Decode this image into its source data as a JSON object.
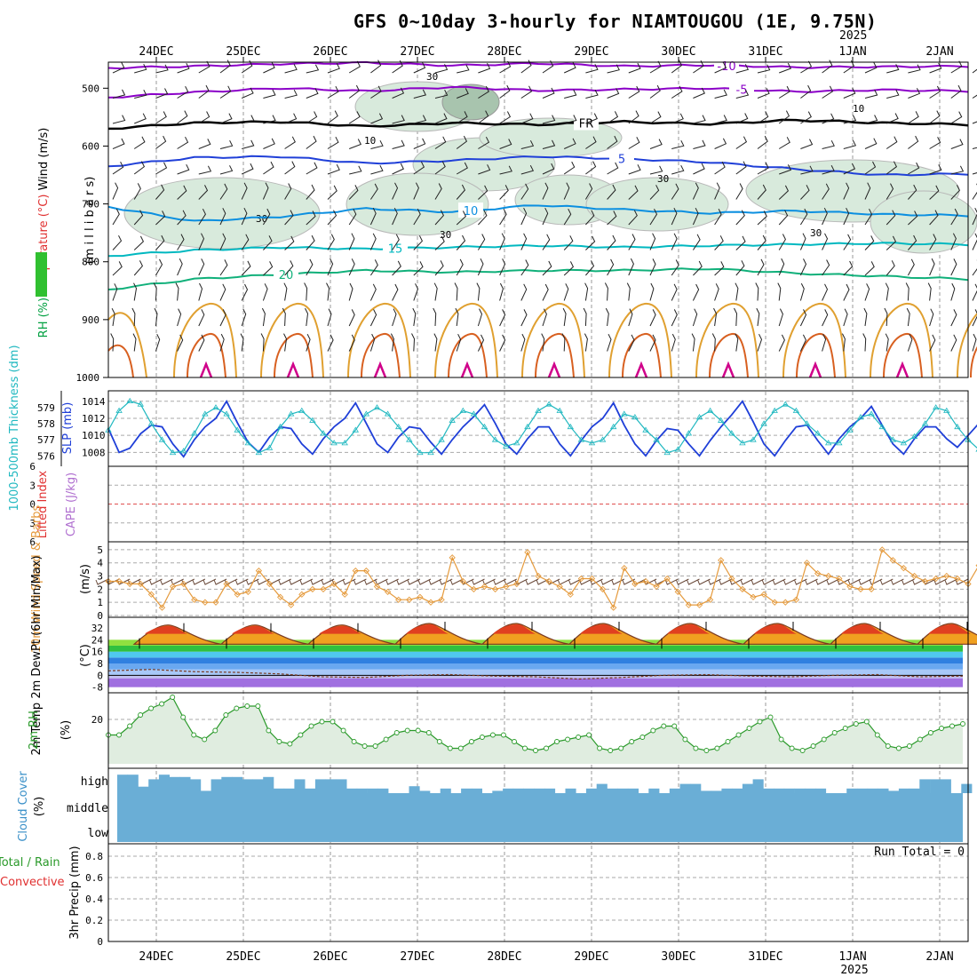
{
  "title": "GFS 0~10day 3-hourly for NIAMTOUGOU (1E, 9.75N)",
  "year_label": "2025",
  "dates": [
    "24DEC",
    "25DEC",
    "26DEC",
    "27DEC",
    "28DEC",
    "29DEC",
    "30DEC",
    "31DEC",
    "1JAN",
    "2JAN"
  ],
  "run_total": "Run Total = 0",
  "colors": {
    "purple": "#8b00c8",
    "black": "#000000",
    "blue": "#1f3fd8",
    "lightblue": "#0b8fe0",
    "cyan": "#00b8c0",
    "green": "#10b07a",
    "orange": "#e0a030",
    "darkorange": "#d86020",
    "magenta": "#d0008a",
    "rh_fill": "#d8eadc",
    "cloud": "#6aaed6",
    "slp": "#1f3fd8",
    "thickness": "#20b8c0",
    "wind10": "#e59a3c",
    "rh2m": "#2a9a2a"
  },
  "chart_data": [
    {
      "panel": "upper-air",
      "type": "contour",
      "ylabel_parts": [
        "RH (%)",
        "Temperature (°C)",
        "Wind (m/s)"
      ],
      "axis_unit": "(m i l l i b a r s)",
      "y_ticks": [
        500,
        600,
        700,
        800,
        900,
        1000
      ],
      "contours": [
        {
          "label": "-10",
          "level_mb": 462,
          "values_mb": [
            465,
            462,
            458,
            456,
            461,
            457,
            462,
            460,
            464,
            463,
            462
          ]
        },
        {
          "label": "-5",
          "level_mb": 508,
          "values_mb": [
            516,
            507,
            500,
            505,
            498,
            504,
            502,
            500,
            506,
            503,
            505
          ]
        },
        {
          "label": "FR",
          "level_mb": 562,
          "values_mb": [
            570,
            560,
            558,
            566,
            560,
            563,
            558,
            562,
            555,
            560,
            563
          ]
        },
        {
          "label": "5",
          "level_mb": 625,
          "values_mb": [
            635,
            620,
            618,
            630,
            625,
            618,
            622,
            628,
            640,
            650,
            648
          ]
        },
        {
          "label": "10",
          "level_mb": 710,
          "values_mb": [
            705,
            730,
            722,
            708,
            714,
            702,
            710,
            716,
            712,
            718,
            720
          ]
        },
        {
          "label": "15",
          "level_mb": 775,
          "values_mb": [
            790,
            780,
            775,
            778,
            775,
            772,
            775,
            772,
            770,
            768,
            770
          ]
        },
        {
          "label": "20",
          "level_mb": 825,
          "values_mb": [
            848,
            830,
            822,
            815,
            818,
            815,
            815,
            812,
            820,
            825,
            830
          ]
        }
      ],
      "rh_labels": [
        "30",
        "30",
        "30",
        "30",
        "10",
        "10",
        "30"
      ]
    },
    {
      "panel": "thickness-slp",
      "type": "line",
      "ylabel_left": "1000-500mb Thickness (dm)",
      "ylabel_right": "SLP (mb)",
      "thickness_ticks": [
        576,
        577,
        578,
        579
      ],
      "slp_ticks": [
        1008,
        1010,
        1012,
        1014
      ],
      "series": [
        {
          "name": "SLP (mb)",
          "axis": "slp",
          "values": [
            1010.8,
            1008.0,
            1008.5,
            1010.2,
            1011.2,
            1011.0,
            1009.0,
            1007.5,
            1009.5,
            1011.0,
            1012.0,
            1014.0,
            1011.5,
            1009.2,
            1008.0,
            1009.8,
            1011.0,
            1010.8,
            1009.0,
            1007.8,
            1009.6,
            1011.0,
            1012.0,
            1013.8,
            1011.4,
            1009.0,
            1008.0,
            1009.8,
            1011.0,
            1010.8,
            1009.2,
            1007.8,
            1009.5,
            1011.0,
            1012.2,
            1013.6,
            1011.4,
            1009.0,
            1007.8,
            1009.6,
            1011.0,
            1011.0,
            1009.0,
            1007.6,
            1009.4,
            1011.0,
            1012.0,
            1013.8,
            1011.2,
            1009.0,
            1007.6,
            1009.4,
            1010.8,
            1010.6,
            1009.0,
            1007.6,
            1009.4,
            1011.0,
            1012.4,
            1014.0,
            1011.6,
            1009.0,
            1007.6,
            1009.4,
            1011.0,
            1011.2,
            1009.4,
            1007.8,
            1009.6,
            1011.0,
            1012.0,
            1013.4,
            1011.2,
            1009.0,
            1007.8,
            1009.6,
            1011.0,
            1011.0,
            1009.6,
            1008.6,
            1010.0,
            1011.4
          ]
        },
        {
          "name": "1000-500mb Thickness (dm)",
          "axis": "thickness",
          "values": [
            577.6,
            578.8,
            579.4,
            579.2,
            578.0,
            577.0,
            576.2,
            576.3,
            577.4,
            578.6,
            579.0,
            578.6,
            577.6,
            576.8,
            576.2,
            576.5,
            577.8,
            578.6,
            578.8,
            578.2,
            577.4,
            576.8,
            576.8,
            577.6,
            578.6,
            579.0,
            578.6,
            577.8,
            577.0,
            576.2,
            576.2,
            577.0,
            578.2,
            578.8,
            578.6,
            577.8,
            577.0,
            576.6,
            576.8,
            577.8,
            578.8,
            579.2,
            578.8,
            577.8,
            577.0,
            576.8,
            577.0,
            577.8,
            578.6,
            578.4,
            577.6,
            577.0,
            576.2,
            576.4,
            577.4,
            578.4,
            578.8,
            578.2,
            577.4,
            576.8,
            577.0,
            578.0,
            578.8,
            579.2,
            578.8,
            578.0,
            577.4,
            576.8,
            576.8,
            577.6,
            578.4,
            578.6,
            577.8,
            577.0,
            576.8,
            577.2,
            578.0,
            579.0,
            578.8,
            577.8,
            577.0,
            576.4
          ]
        }
      ]
    },
    {
      "panel": "cape-li",
      "type": "line",
      "ylabel_left": "Lifted Index",
      "ylabel_right": "CAPE (J/kg)",
      "li_ticks": [
        -6,
        -3,
        0,
        3,
        6
      ],
      "li_tick_labels": [
        "6",
        "3",
        "0",
        "3",
        "6"
      ]
    },
    {
      "panel": "wind10m",
      "type": "line",
      "ylabel": "10m Wind Speed & Barbs",
      "unit": "(m/s)",
      "y_ticks": [
        0,
        1,
        2,
        3,
        4,
        5
      ],
      "y_tick_labels": [
        "0",
        "1",
        "2",
        "3",
        "4",
        "5"
      ],
      "series": [
        {
          "name": "10m Wind Speed",
          "values": [
            2.6,
            2.6,
            2.4,
            2.4,
            1.6,
            0.6,
            2.2,
            2.4,
            1.2,
            1.0,
            1.0,
            2.4,
            1.6,
            1.8,
            3.4,
            2.4,
            1.4,
            0.8,
            1.6,
            2.0,
            2.0,
            2.4,
            1.6,
            3.4,
            3.4,
            2.2,
            1.8,
            1.2,
            1.2,
            1.4,
            1.0,
            1.2,
            4.4,
            2.6,
            2.0,
            2.2,
            2.0,
            2.2,
            2.4,
            4.8,
            3.0,
            2.6,
            2.2,
            1.6,
            2.8,
            2.8,
            2.0,
            0.6,
            3.6,
            2.4,
            2.6,
            2.2,
            2.8,
            1.8,
            0.8,
            0.8,
            1.2,
            4.2,
            2.8,
            2.0,
            1.4,
            1.6,
            1.0,
            1.0,
            1.2,
            4.0,
            3.2,
            3.0,
            2.8,
            2.2,
            2.0,
            2.0,
            5.0,
            4.2,
            3.6,
            3.0,
            2.6,
            2.8,
            3.0,
            2.8,
            2.4,
            3.8
          ]
        }
      ]
    },
    {
      "panel": "temp2m",
      "type": "area",
      "ylabel": "2m Temp 2m DewPt (6hr Min/Max)",
      "unit": "(°C)",
      "y_ticks": [
        -8,
        0,
        8,
        16,
        24,
        32
      ],
      "max_temps": [
        34,
        34,
        34,
        35,
        35,
        35,
        35,
        35,
        35,
        35
      ],
      "min_temps": [
        21,
        21,
        21,
        21,
        21,
        21,
        21,
        21,
        21,
        21
      ],
      "dewpoint": [
        3.0,
        4.0,
        2.5,
        2.0,
        1.0,
        -1.0,
        -1.5,
        0.0,
        0.5,
        -0.5,
        -1.0,
        -2.5,
        -1.5,
        0.0,
        0.5,
        -0.5,
        -1.0,
        0.0,
        0.5,
        -1.0,
        -0.5
      ]
    },
    {
      "panel": "rh2m",
      "type": "area",
      "ylabel": "2m RH",
      "unit": "(%)",
      "y_ticks": [
        20
      ],
      "series": [
        {
          "name": "2m RH",
          "values": [
            13,
            13,
            17,
            22,
            25,
            27,
            30,
            21,
            13,
            11,
            15,
            22,
            25,
            26,
            26,
            15,
            10,
            9,
            13,
            17,
            19,
            19,
            15,
            10,
            8,
            8,
            11,
            14,
            15,
            15,
            14,
            10,
            7,
            7,
            10,
            12,
            13,
            13,
            10,
            7,
            6,
            7,
            10,
            11,
            12,
            13,
            7,
            6,
            7,
            10,
            12,
            15,
            17,
            17,
            11,
            7,
            6,
            7,
            10,
            13,
            16,
            19,
            21,
            11,
            7,
            6,
            8,
            11,
            14,
            16,
            18,
            19,
            13,
            8,
            7,
            8,
            11,
            14,
            16,
            17,
            18
          ]
        }
      ]
    },
    {
      "panel": "cloud",
      "type": "bar",
      "ylabel": "Cloud Cover",
      "unit": "(%)",
      "level_labels": [
        "high",
        "middle",
        "low"
      ],
      "high_values": [
        80,
        80,
        28,
        60,
        80,
        70,
        70,
        60,
        10,
        60,
        70,
        70,
        60,
        60,
        70,
        20,
        20,
        60,
        20,
        60,
        60,
        60,
        20,
        20,
        20,
        20,
        0,
        0,
        30,
        10,
        0,
        20,
        0,
        20,
        20,
        0,
        10,
        20,
        20,
        20,
        20,
        20,
        0,
        20,
        0,
        20,
        40,
        20,
        20,
        20,
        0,
        20,
        0,
        20,
        40,
        40,
        10,
        10,
        20,
        20,
        40,
        60,
        20,
        20,
        20,
        20,
        20,
        20,
        0,
        0,
        20,
        20,
        20,
        20,
        10,
        20,
        20,
        60,
        60,
        60,
        0,
        40
      ],
      "middle_values": [
        100,
        100,
        100,
        100,
        100,
        100,
        100,
        100,
        100,
        100,
        100,
        100,
        100,
        100,
        100,
        100,
        100,
        100,
        100,
        100,
        100,
        100,
        100,
        100,
        100,
        100,
        100,
        100,
        100,
        100,
        100,
        100,
        100,
        100,
        100,
        100,
        100,
        100,
        100,
        100,
        100,
        100,
        100,
        100,
        100,
        100,
        100,
        100,
        100,
        100,
        100,
        100,
        100,
        100,
        100,
        100,
        100,
        100,
        100,
        100,
        100,
        100,
        100,
        100,
        100,
        100,
        100,
        100,
        100,
        100,
        100,
        100,
        100,
        100,
        100,
        100,
        100,
        100,
        100,
        100,
        100
      ],
      "low_values": [
        100,
        100,
        100,
        100,
        100,
        100,
        100,
        100,
        100,
        100,
        100,
        100,
        100,
        100,
        100,
        100,
        100,
        100,
        100,
        100,
        100,
        100,
        100,
        100,
        100,
        100,
        100,
        100,
        100,
        100,
        100,
        100,
        100,
        100,
        100,
        100,
        100,
        100,
        100,
        100,
        100,
        100,
        100,
        100,
        100,
        100,
        100,
        100,
        100,
        100,
        100,
        100,
        100,
        100,
        100,
        100,
        100,
        100,
        100,
        100,
        100,
        100,
        100,
        100,
        100,
        100,
        100,
        100,
        100,
        100,
        100,
        100,
        100,
        100,
        100,
        100,
        100,
        100,
        100,
        100,
        100
      ]
    },
    {
      "panel": "precip",
      "type": "bar",
      "ylabel_left": "Total / Rain",
      "ylabel_left2": "Convective",
      "ylabel": "3hr Precip (mm)",
      "y_ticks": [
        0,
        0.2,
        0.4,
        0.6,
        0.8
      ],
      "y_tick_labels": [
        "0",
        "0.2",
        "0.4",
        "0.6",
        "0.8"
      ],
      "ylim": [
        0,
        0.9
      ],
      "values": []
    }
  ]
}
